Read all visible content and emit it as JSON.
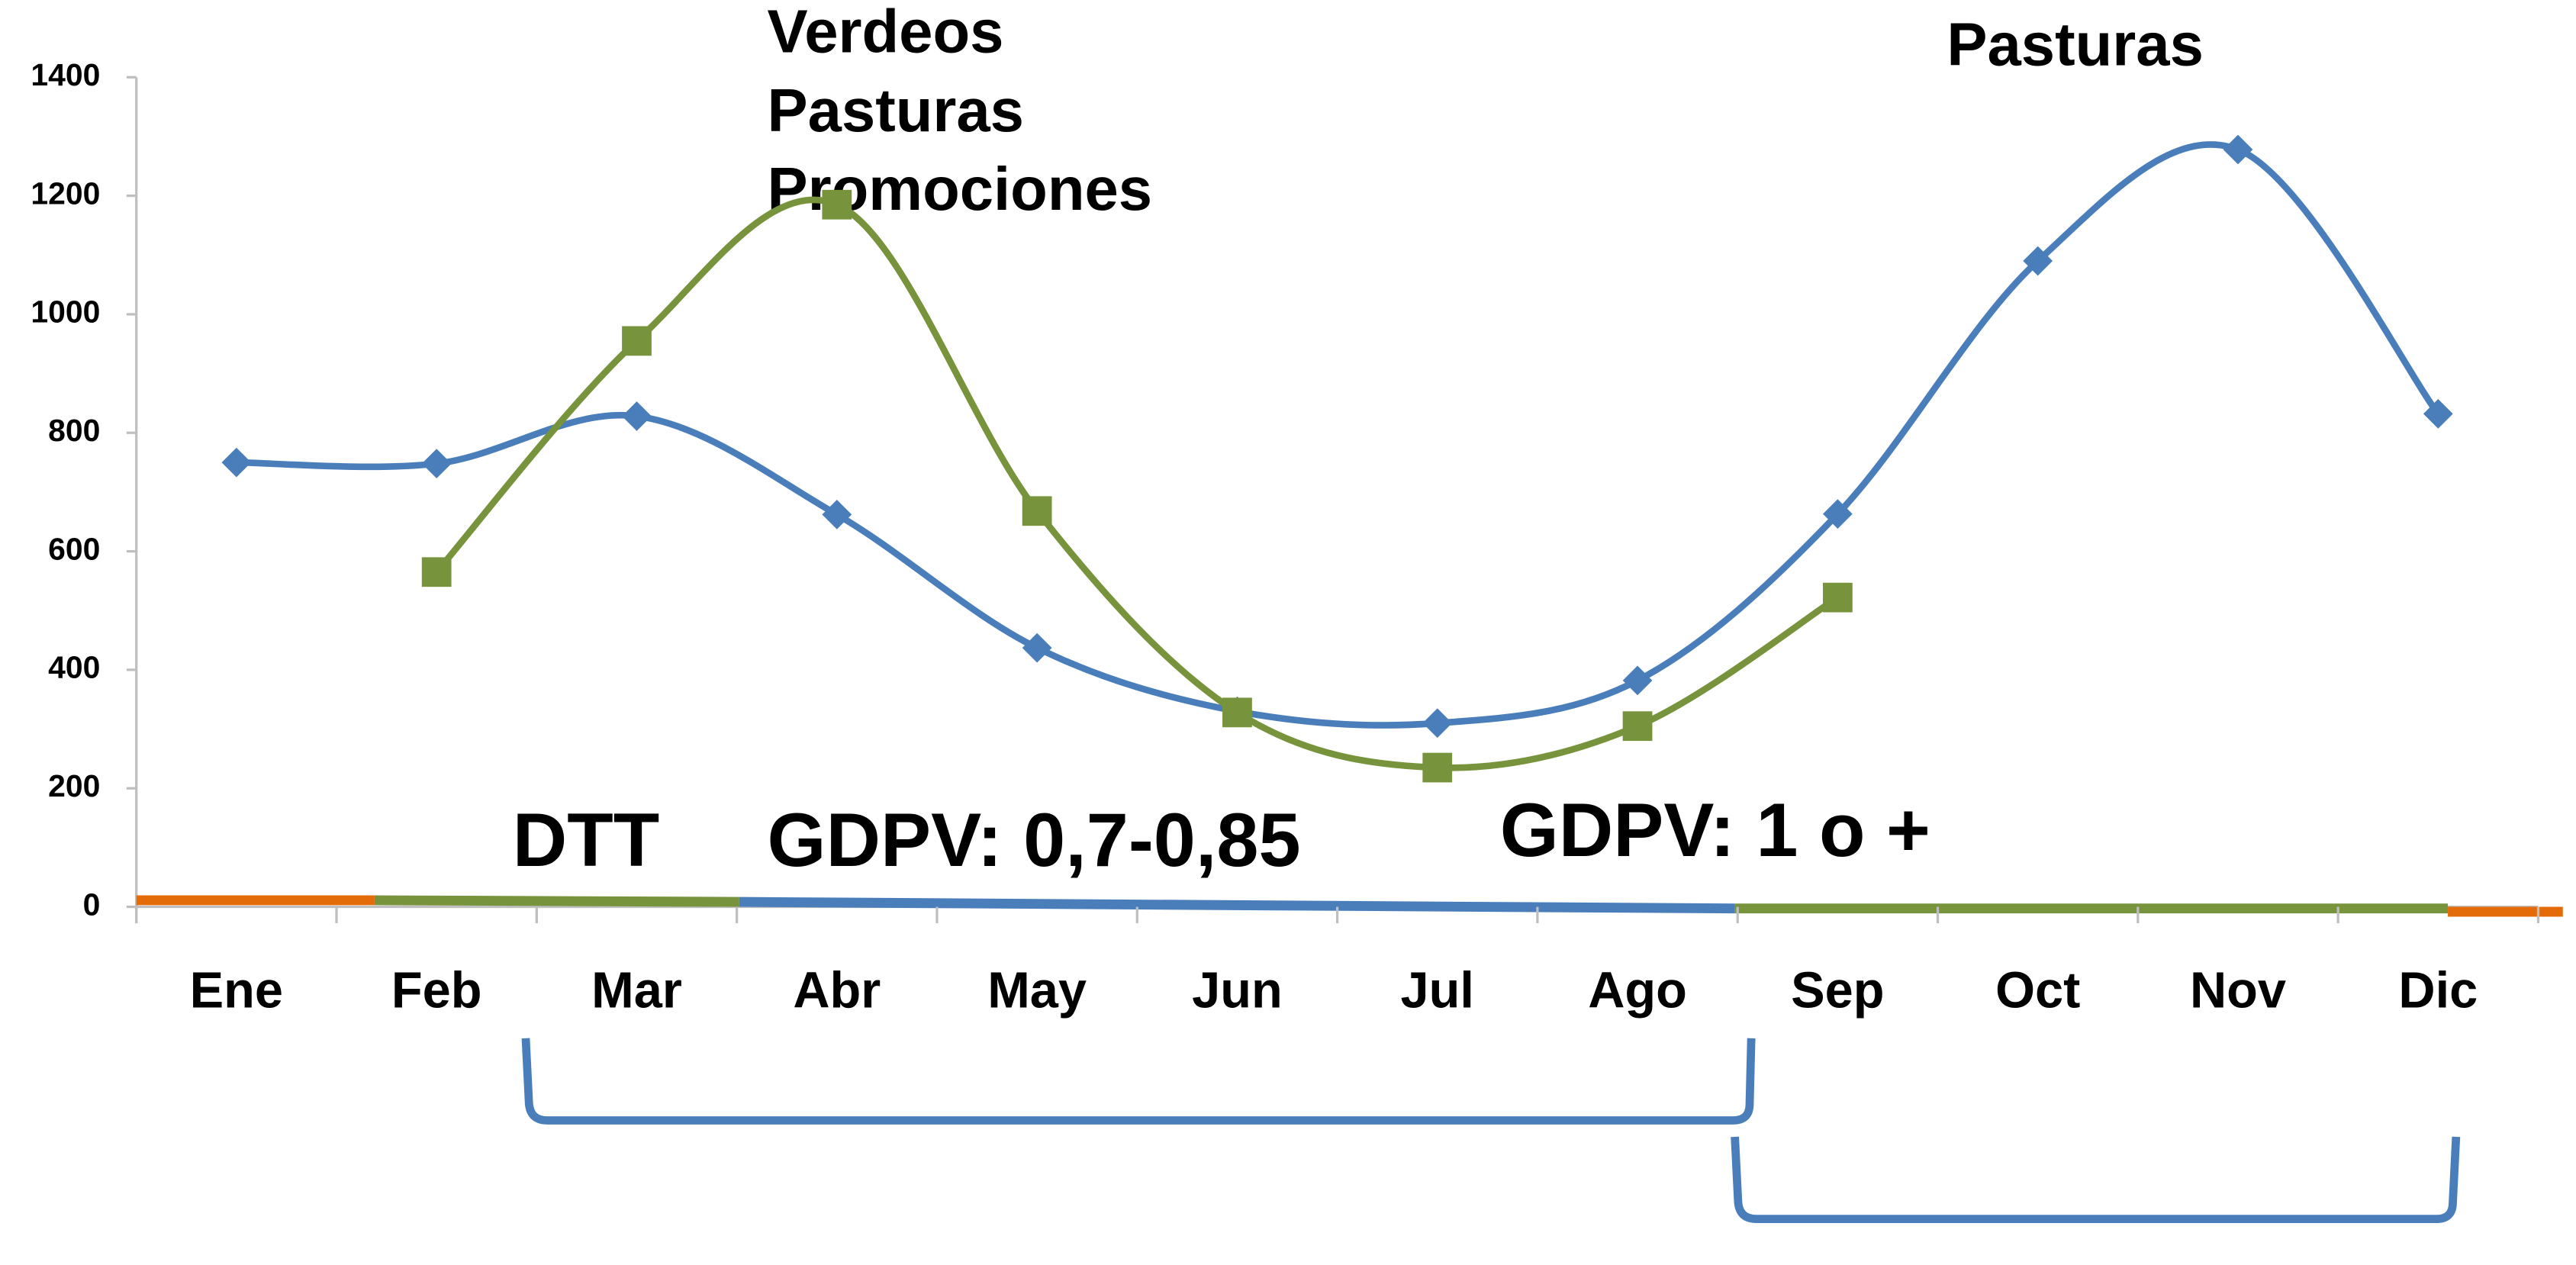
{
  "chart_data": {
    "type": "line",
    "categories": [
      "Ene",
      "Feb",
      "Mar",
      "Abr",
      "May",
      "Jun",
      "Jul",
      "Ago",
      "Sep",
      "Oct",
      "Nov",
      "Dic"
    ],
    "series": [
      {
        "color": "#4a7ebb",
        "marker": "diamond",
        "values": [
          750,
          748,
          828,
          662,
          437,
          330,
          310,
          382,
          663,
          1090,
          1278,
          832
        ]
      },
      {
        "color": "#77933c",
        "marker": "square",
        "values": [
          null,
          565,
          955,
          1185,
          668,
          328,
          235,
          305,
          522,
          null,
          null,
          null
        ]
      }
    ],
    "ylim": [
      0,
      1400
    ],
    "yticks": [
      0,
      200,
      400,
      600,
      800,
      1000,
      1200,
      1400
    ],
    "annotations": [
      "Verdeos",
      "Pasturas",
      "Promociones",
      "Pasturas",
      "DTT",
      "GDPV: 0,7-0,85",
      "GDPV: 1 o +"
    ]
  }
}
